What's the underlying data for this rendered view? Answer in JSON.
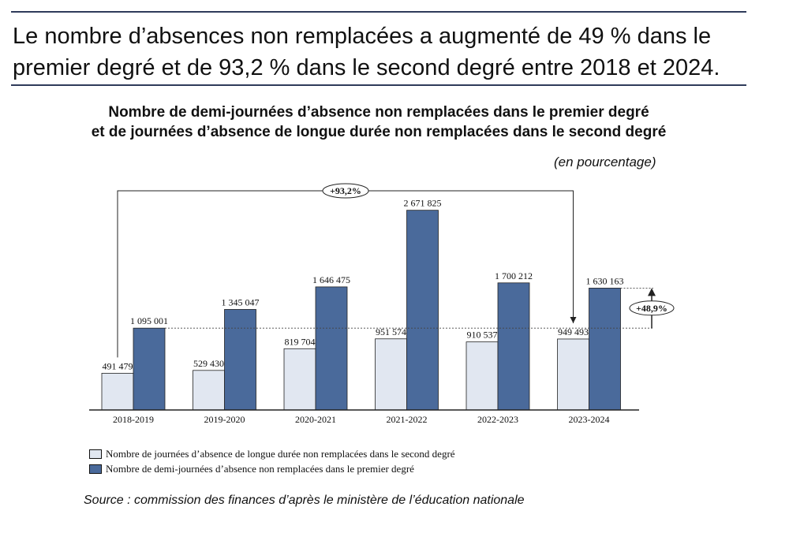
{
  "headline": {
    "line1": "Le nombre d’absences non remplacées a augmenté de 49 % dans le",
    "line2": "premier degré et de 93,2 % dans le second degré entre 2018 et 2024."
  },
  "chart_data": {
    "type": "bar",
    "title_line1": "Nombre de demi-journées d’absence non remplacées dans le premier degré",
    "title_line2": "et de journées d’absence de longue durée non remplacées dans le second degré",
    "unit_note": "(en pourcentage)",
    "categories": [
      "2018-2019",
      "2019-2020",
      "2020-2021",
      "2021-2022",
      "2022-2023",
      "2023-2024"
    ],
    "series": [
      {
        "name": "Nombre de journées d’absence de longue durée non remplacées dans le second degré",
        "color": "#e1e7f1",
        "values": [
          491479,
          529430,
          819704,
          951574,
          910537,
          949493
        ],
        "labels": [
          "491 479",
          "529 430",
          "819 704",
          "951 574",
          "910 537",
          "949 493"
        ]
      },
      {
        "name": "Nombre de demi-journées d’absence non remplacées dans le premier degré",
        "color": "#4a6a9b",
        "values": [
          1095001,
          1345047,
          1646475,
          2671825,
          1700212,
          1630163
        ],
        "labels": [
          "1 095 001",
          "1 345 047",
          "1 646 475",
          "2 671 825",
          "1 700 212",
          "1 630 163"
        ]
      }
    ],
    "ylim": [
      0,
      2700000
    ],
    "grid": false,
    "legend_position": "bottom-left",
    "annotations": [
      {
        "text": "+93,2%",
        "refers_to": "second degré 2018-2019 → 2023-2024"
      },
      {
        "text": "+48,9%",
        "refers_to": "premier degré 2018-2019 → 2023-2024"
      }
    ]
  },
  "source": "Source : commission des finances d’après le ministère de l’éducation nationale"
}
